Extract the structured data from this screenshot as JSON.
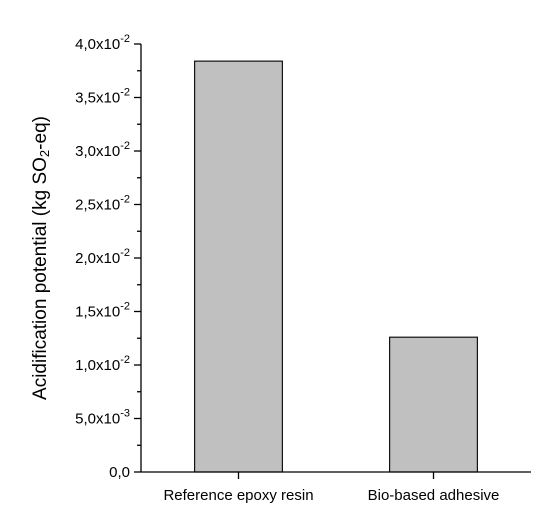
{
  "chart_data": {
    "type": "bar",
    "categories": [
      "Reference epoxy resin",
      "Bio-based adhesive"
    ],
    "values": [
      0.0384,
      0.0126
    ],
    "ylabel": {
      "prefix": "Acidification potential (kg SO",
      "subscript": "2",
      "suffix": "-eq)"
    },
    "xlabel": "",
    "ylim": [
      0,
      0.04
    ],
    "yticks": [
      {
        "value": 0.0,
        "mantissa": "0,0",
        "exp": ""
      },
      {
        "value": 0.005,
        "mantissa": "5,0x10",
        "exp": "-3"
      },
      {
        "value": 0.01,
        "mantissa": "1,0x10",
        "exp": "-2"
      },
      {
        "value": 0.015,
        "mantissa": "1,5x10",
        "exp": "-2"
      },
      {
        "value": 0.02,
        "mantissa": "2,0x10",
        "exp": "-2"
      },
      {
        "value": 0.025,
        "mantissa": "2,5x10",
        "exp": "-2"
      },
      {
        "value": 0.03,
        "mantissa": "3,0x10",
        "exp": "-2"
      },
      {
        "value": 0.035,
        "mantissa": "3,5x10",
        "exp": "-2"
      },
      {
        "value": 0.04,
        "mantissa": "4,0x10",
        "exp": "-2"
      }
    ],
    "bar_color": "#c0c0c0",
    "bar_edge_color": "#000000",
    "grid": false,
    "legend": "none"
  }
}
